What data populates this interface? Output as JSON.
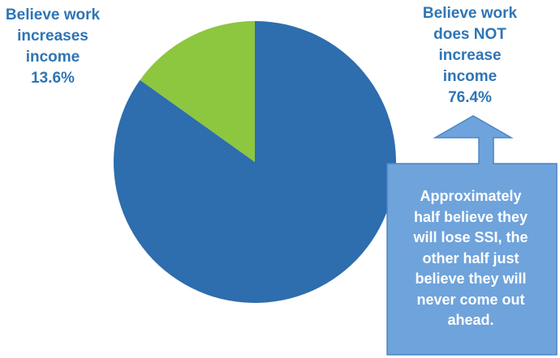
{
  "chart_data": {
    "type": "pie",
    "title": "",
    "slices": [
      {
        "label_lines": [
          "Believe work",
          "does NOT",
          "increase",
          "income"
        ],
        "value_text": "76.4%",
        "value": 76.4,
        "color": "#2e6dae"
      },
      {
        "label_lines": [
          "Believe work",
          "increases",
          "income"
        ],
        "value_text": "13.6%",
        "value": 13.6,
        "color": "#8dc63f"
      }
    ],
    "label_color": "#2e75b6"
  },
  "callout": {
    "text_lines": [
      "Approximately",
      "half believe they",
      "will lose SSI, the",
      "other half just",
      "believe they will",
      "never come out",
      "ahead."
    ],
    "fill": "#6fa3db",
    "stroke": "#4a86c8"
  }
}
